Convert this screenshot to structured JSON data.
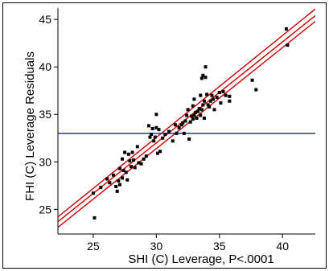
{
  "chart_data": {
    "type": "scatter",
    "xlabel": "SHI (C) Leverage, P<.0001",
    "ylabel": "FHI (C) Leverage Residuals",
    "xlim": [
      22.2,
      42.6
    ],
    "ylim": [
      22.4,
      46.2
    ],
    "xticks": [
      25,
      30,
      35,
      40
    ],
    "yticks": [
      25,
      30,
      35,
      40,
      45
    ],
    "grid": false,
    "mean_line": {
      "y": 33.0,
      "color": "#0000ff"
    },
    "fit_line": {
      "color": "#cc0000",
      "center": {
        "x": [
          22.2,
          42.6
        ],
        "y": [
          23.7,
          45.4
        ]
      },
      "upper": {
        "x": [
          22.2,
          42.6
        ],
        "y": [
          24.2,
          46.1
        ]
      },
      "lower": {
        "x": [
          22.2,
          42.6
        ],
        "y": [
          23.1,
          44.8
        ]
      }
    },
    "points": [
      [
        25.1,
        24.1
      ],
      [
        25.0,
        26.7
      ],
      [
        25.6,
        27.3
      ],
      [
        26.1,
        28.2
      ],
      [
        26.3,
        27.8
      ],
      [
        26.6,
        28.6
      ],
      [
        26.8,
        27.4
      ],
      [
        26.9,
        26.9
      ],
      [
        27.0,
        28.0
      ],
      [
        27.1,
        29.3
      ],
      [
        27.1,
        27.6
      ],
      [
        27.3,
        28.3
      ],
      [
        27.3,
        30.3
      ],
      [
        27.4,
        29.1
      ],
      [
        27.5,
        31.0
      ],
      [
        27.6,
        28.9
      ],
      [
        27.7,
        28.1
      ],
      [
        27.8,
        30.8
      ],
      [
        27.9,
        30.1
      ],
      [
        28.0,
        29.5
      ],
      [
        28.1,
        31.0
      ],
      [
        28.2,
        30.2
      ],
      [
        28.3,
        29.4
      ],
      [
        28.5,
        31.6
      ],
      [
        28.6,
        29.9
      ],
      [
        28.8,
        29.8
      ],
      [
        29.0,
        30.3
      ],
      [
        29.2,
        30.6
      ],
      [
        29.4,
        33.8
      ],
      [
        29.5,
        32.6
      ],
      [
        29.6,
        32.9
      ],
      [
        29.7,
        33.5
      ],
      [
        29.8,
        32.2
      ],
      [
        29.9,
        32.6
      ],
      [
        30.0,
        33.6
      ],
      [
        30.0,
        35.0
      ],
      [
        30.1,
        30.9
      ],
      [
        30.2,
        33.4
      ],
      [
        30.3,
        31.1
      ],
      [
        30.5,
        32.5
      ],
      [
        30.7,
        32.9
      ],
      [
        31.0,
        33.2
      ],
      [
        31.3,
        32.2
      ],
      [
        31.5,
        33.9
      ],
      [
        31.6,
        33.0
      ],
      [
        31.8,
        33.6
      ],
      [
        32.0,
        33.9
      ],
      [
        32.1,
        34.1
      ],
      [
        32.2,
        33.0
      ],
      [
        32.3,
        34.3
      ],
      [
        32.4,
        34.9
      ],
      [
        32.5,
        35.5
      ],
      [
        32.6,
        32.4
      ],
      [
        32.7,
        34.2
      ],
      [
        32.8,
        34.8
      ],
      [
        32.9,
        35.9
      ],
      [
        32.9,
        34.5
      ],
      [
        33.0,
        34.9
      ],
      [
        33.0,
        36.6
      ],
      [
        33.1,
        35.2
      ],
      [
        33.2,
        34.6
      ],
      [
        33.3,
        35.3
      ],
      [
        33.4,
        35.6
      ],
      [
        33.5,
        34.9
      ],
      [
        33.5,
        37.0
      ],
      [
        33.6,
        35.5
      ],
      [
        33.6,
        38.8
      ],
      [
        33.7,
        36.0
      ],
      [
        33.7,
        39.1
      ],
      [
        33.8,
        36.4
      ],
      [
        33.8,
        34.6
      ],
      [
        33.9,
        38.9
      ],
      [
        33.9,
        40.0
      ],
      [
        34.0,
        37.1
      ],
      [
        34.1,
        36.0
      ],
      [
        34.2,
        35.8
      ],
      [
        34.3,
        36.4
      ],
      [
        34.4,
        37.0
      ],
      [
        34.5,
        36.6
      ],
      [
        34.6,
        35.5
      ],
      [
        34.8,
        36.8
      ],
      [
        35.0,
        37.3
      ],
      [
        35.1,
        36.2
      ],
      [
        35.3,
        37.4
      ],
      [
        35.5,
        37.0
      ],
      [
        35.8,
        36.9
      ],
      [
        35.8,
        36.4
      ],
      [
        37.6,
        38.6
      ],
      [
        37.9,
        37.6
      ],
      [
        40.3,
        44.0
      ],
      [
        40.4,
        42.3
      ]
    ]
  }
}
